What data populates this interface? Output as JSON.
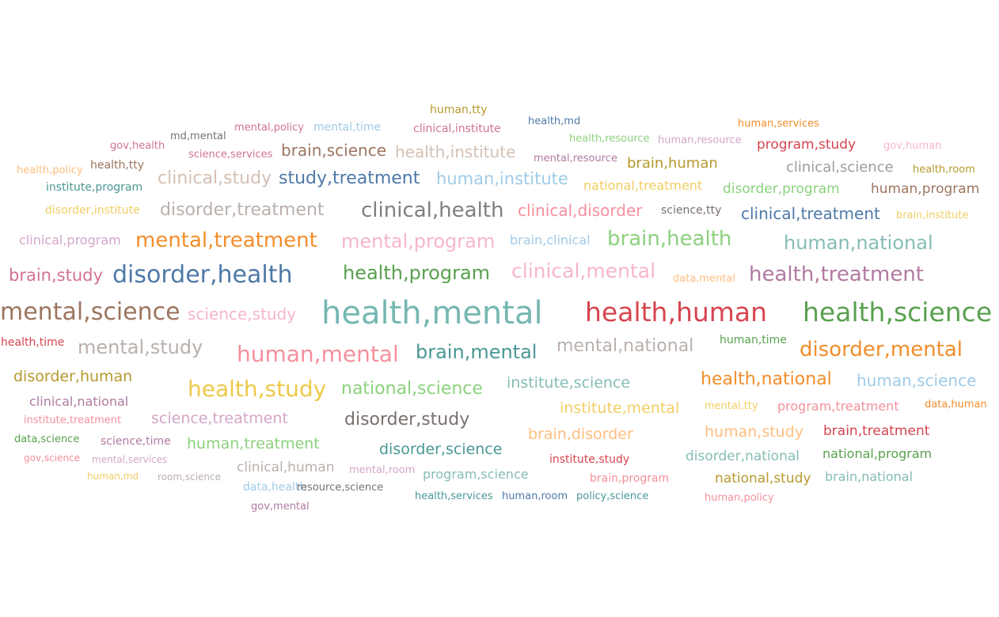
{
  "chart_data": {
    "type": "wordcloud",
    "words": [
      {
        "text": "health,mental",
        "color": "#76b7b2"
      },
      {
        "text": "health,human",
        "color": "#d6454f"
      },
      {
        "text": "health,science",
        "color": "#59a14f"
      },
      {
        "text": "mental,science",
        "color": "#9c755f"
      },
      {
        "text": "disorder,health",
        "color": "#4e79a7"
      },
      {
        "text": "mental,treatment",
        "color": "#f28e2b"
      },
      {
        "text": "clinical,health",
        "color": "#7f7f7f"
      },
      {
        "text": "health,program",
        "color": "#59a14f"
      },
      {
        "text": "health,treatment",
        "color": "#b07aa1"
      },
      {
        "text": "human,mental",
        "color": "#f4909c"
      },
      {
        "text": "disorder,mental",
        "color": "#f28e2b"
      },
      {
        "text": "health,study",
        "color": "#edc948"
      },
      {
        "text": "mental,program",
        "color": "#f7b6c8"
      },
      {
        "text": "brain,health",
        "color": "#8cd17d"
      },
      {
        "text": "human,national",
        "color": "#86bcb6"
      },
      {
        "text": "clinical,mental",
        "color": "#f7b6c8"
      },
      {
        "text": "mental,study",
        "color": "#bab0ac"
      },
      {
        "text": "brain,mental",
        "color": "#499894"
      },
      {
        "text": "mental,national",
        "color": "#bab0ac"
      },
      {
        "text": "disorder,treatment",
        "color": "#bab0ac"
      },
      {
        "text": "clinical,study",
        "color": "#d4c0b4"
      },
      {
        "text": "study,treatment",
        "color": "#4e79a7"
      },
      {
        "text": "human,institute",
        "color": "#a0cbe8"
      },
      {
        "text": "clinical,disorder",
        "color": "#f4909c"
      },
      {
        "text": "clinical,treatment",
        "color": "#4e79a7"
      },
      {
        "text": "brain,study",
        "color": "#d37295"
      },
      {
        "text": "health,national",
        "color": "#f28e2b"
      },
      {
        "text": "national,science",
        "color": "#8cd17d"
      },
      {
        "text": "disorder,study",
        "color": "#79706e"
      },
      {
        "text": "brain,science",
        "color": "#9c755f"
      },
      {
        "text": "health,institute",
        "color": "#d4c0b4"
      },
      {
        "text": "science,study",
        "color": "#f7b6c8"
      },
      {
        "text": "human,science",
        "color": "#a0cbe8"
      },
      {
        "text": "disorder,human",
        "color": "#b6992d"
      },
      {
        "text": "institute,science",
        "color": "#86bcb6"
      },
      {
        "text": "institute,mental",
        "color": "#f1ce63"
      },
      {
        "text": "brain,disorder",
        "color": "#ffbe7d"
      },
      {
        "text": "human,study",
        "color": "#ffbe7d"
      },
      {
        "text": "science,treatment",
        "color": "#d4a6c8"
      },
      {
        "text": "human,treatment",
        "color": "#8cd17d"
      },
      {
        "text": "disorder,science",
        "color": "#499894"
      },
      {
        "text": "brain,clinical",
        "color": "#a0cbe8"
      },
      {
        "text": "program,study",
        "color": "#d6454f"
      },
      {
        "text": "clinical,science",
        "color": "#9c9c9c"
      },
      {
        "text": "brain,human",
        "color": "#b6992d"
      },
      {
        "text": "disorder,program",
        "color": "#8cd17d"
      },
      {
        "text": "human,program",
        "color": "#9c755f"
      },
      {
        "text": "national,treatment",
        "color": "#f1ce63"
      },
      {
        "text": "brain,treatment",
        "color": "#d6454f"
      },
      {
        "text": "program,treatment",
        "color": "#f4909c"
      },
      {
        "text": "national,study",
        "color": "#b6992d"
      },
      {
        "text": "disorder,national",
        "color": "#86bcb6"
      },
      {
        "text": "national,program",
        "color": "#59a14f"
      },
      {
        "text": "brain,national",
        "color": "#86bcb6"
      },
      {
        "text": "program,science",
        "color": "#86bcb6"
      },
      {
        "text": "clinical,human",
        "color": "#bab0ac"
      },
      {
        "text": "clinical,national",
        "color": "#b07aa1"
      },
      {
        "text": "health,time",
        "color": "#d6454f"
      },
      {
        "text": "human,time",
        "color": "#59a14f"
      },
      {
        "text": "science,time",
        "color": "#b07aa1"
      },
      {
        "text": "institute,program",
        "color": "#499894"
      },
      {
        "text": "disorder,institute",
        "color": "#f1ce63"
      },
      {
        "text": "clinical,program",
        "color": "#d4a6c8"
      },
      {
        "text": "health,policy",
        "color": "#ffbe7d"
      },
      {
        "text": "health,tty",
        "color": "#9c755f"
      },
      {
        "text": "gov,health",
        "color": "#d37295"
      },
      {
        "text": "md,mental",
        "color": "#79706e"
      },
      {
        "text": "mental,policy",
        "color": "#d37295"
      },
      {
        "text": "mental,time",
        "color": "#a0cbe8"
      },
      {
        "text": "science,services",
        "color": "#d37295"
      },
      {
        "text": "human,tty",
        "color": "#b6992d"
      },
      {
        "text": "clinical,institute",
        "color": "#d37295"
      },
      {
        "text": "health,md",
        "color": "#4e79a7"
      },
      {
        "text": "mental,resource",
        "color": "#b07aa1"
      },
      {
        "text": "health,resource",
        "color": "#8cd17d"
      },
      {
        "text": "human,resource",
        "color": "#d4a6c8"
      },
      {
        "text": "human,services",
        "color": "#f28e2b"
      },
      {
        "text": "gov,human",
        "color": "#f7b6c8"
      },
      {
        "text": "health,room",
        "color": "#b6992d"
      },
      {
        "text": "science,tty",
        "color": "#79706e"
      },
      {
        "text": "brain,institute",
        "color": "#f1ce63"
      },
      {
        "text": "data,mental",
        "color": "#ffbe7d"
      },
      {
        "text": "institute,treatment",
        "color": "#f4909c"
      },
      {
        "text": "data,science",
        "color": "#59a14f"
      },
      {
        "text": "gov,science",
        "color": "#f4909c"
      },
      {
        "text": "mental,services",
        "color": "#d4a6c8"
      },
      {
        "text": "human,md",
        "color": "#f1ce63"
      },
      {
        "text": "room,science",
        "color": "#bab0ac"
      },
      {
        "text": "data,health",
        "color": "#a0cbe8"
      },
      {
        "text": "resource,science",
        "color": "#79706e"
      },
      {
        "text": "mental,room",
        "color": "#d4a6c8"
      },
      {
        "text": "gov,mental",
        "color": "#b07aa1"
      },
      {
        "text": "health,services",
        "color": "#499894"
      },
      {
        "text": "human,room",
        "color": "#4e79a7"
      },
      {
        "text": "policy,science",
        "color": "#499894"
      },
      {
        "text": "institute,study",
        "color": "#d6454f"
      },
      {
        "text": "brain,program",
        "color": "#f4909c"
      },
      {
        "text": "human,policy",
        "color": "#f4909c"
      },
      {
        "text": "mental,tty",
        "color": "#f1ce63"
      },
      {
        "text": "data,human",
        "color": "#f28e2b"
      }
    ]
  }
}
